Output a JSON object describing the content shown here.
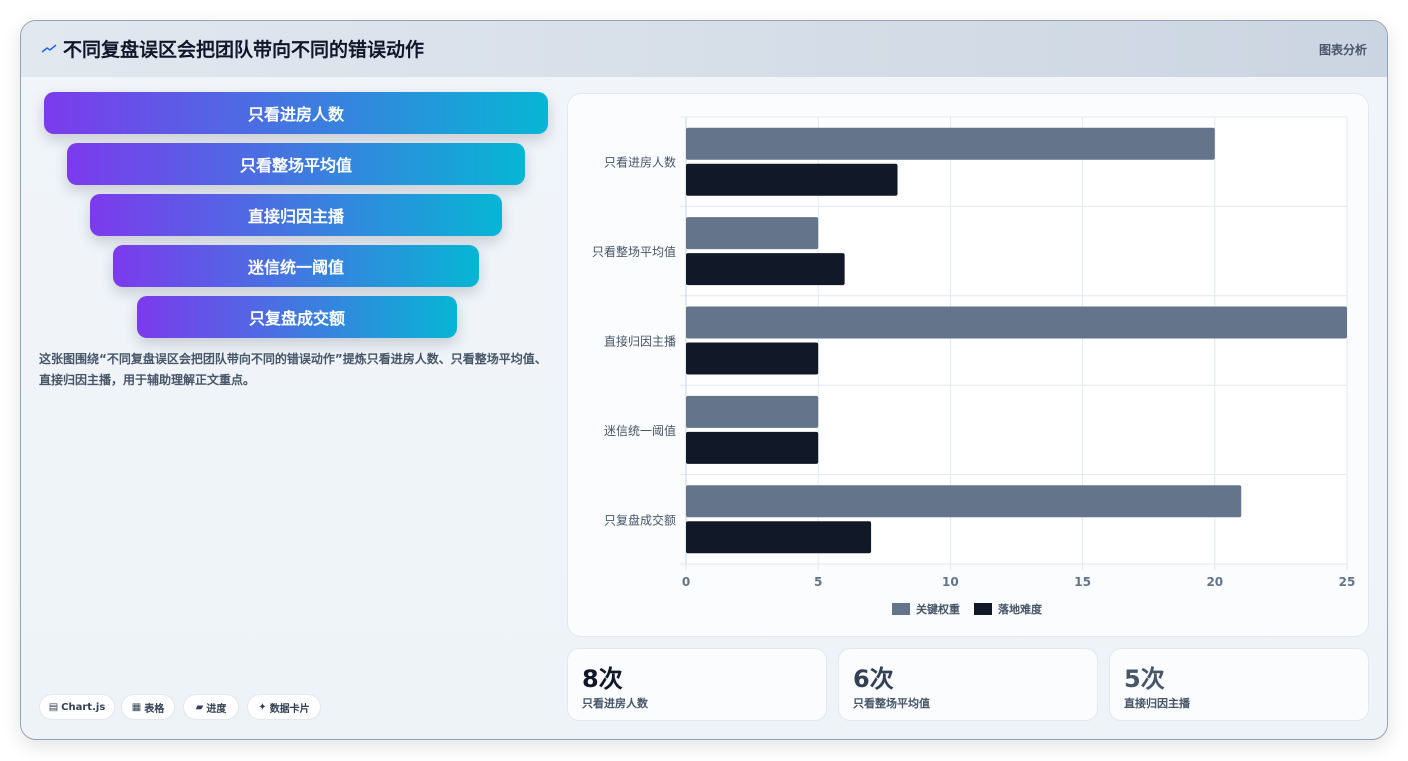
{
  "header": {
    "icon": "sparkline-icon",
    "title": "不同复盘误区会把团队带向不同的错误动作",
    "tag": "图表分析"
  },
  "funnel": {
    "items": [
      "只看进房人数",
      "只看整场平均值",
      "直接归因主播",
      "迷信统一阈值",
      "只复盘成交额"
    ],
    "gradient_from": "#7c3aed",
    "gradient_to": "#06b6d4"
  },
  "description": "这张图围绕“不同复盘误区会把团队带向不同的错误动作”提炼只看进房人数、只看整场平均值、直接归因主播，用于辅助理解正文重点。",
  "chips": [
    {
      "icon": "chart-icon",
      "glyph": "▤",
      "label": "Chart.js"
    },
    {
      "icon": "table-icon",
      "glyph": "▦",
      "label": "表格"
    },
    {
      "icon": "progress-icon",
      "glyph": "▰",
      "label": "进度"
    },
    {
      "icon": "sparkle-icon",
      "glyph": "✦",
      "label": "数据卡片"
    }
  ],
  "chart_data": {
    "type": "bar",
    "orientation": "horizontal",
    "categories": [
      "只看进房人数",
      "只看整场平均值",
      "直接归因主播",
      "迷信统一阈值",
      "只复盘成交额"
    ],
    "series": [
      {
        "name": "关键权重",
        "values": [
          20,
          5,
          25,
          5,
          21
        ],
        "color": "#64748b"
      },
      {
        "name": "落地难度",
        "values": [
          8,
          6,
          5,
          5,
          7
        ],
        "color": "#111827"
      }
    ],
    "xlim": [
      0,
      25
    ],
    "xticks": [
      "0",
      "5",
      "10",
      "15",
      "20",
      "25"
    ],
    "grid": true,
    "legend": "bottom"
  },
  "stats": [
    {
      "value": "8次",
      "label": "只看进房人数",
      "color": "#111827"
    },
    {
      "value": "6次",
      "label": "只看整场平均值",
      "color": "#334155"
    },
    {
      "value": "5次",
      "label": "直接归因主播",
      "color": "#475569"
    }
  ]
}
